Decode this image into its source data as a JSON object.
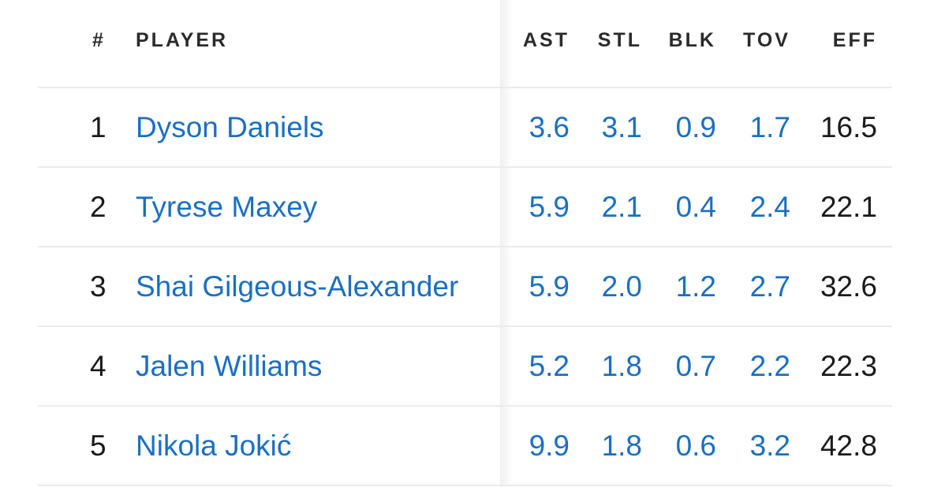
{
  "columns": {
    "rank": "#",
    "player": "PLAYER",
    "ast": "AST",
    "stl": "STL",
    "blk": "BLK",
    "tov": "TOV",
    "eff": "EFF"
  },
  "rows": [
    {
      "rank": "1",
      "player": "Dyson Daniels",
      "ast": "3.6",
      "stl": "3.1",
      "blk": "0.9",
      "tov": "1.7",
      "eff": "16.5"
    },
    {
      "rank": "2",
      "player": "Tyrese Maxey",
      "ast": "5.9",
      "stl": "2.1",
      "blk": "0.4",
      "tov": "2.4",
      "eff": "22.1"
    },
    {
      "rank": "3",
      "player": "Shai Gilgeous-Alexander",
      "ast": "5.9",
      "stl": "2.0",
      "blk": "1.2",
      "tov": "2.7",
      "eff": "32.6"
    },
    {
      "rank": "4",
      "player": "Jalen Williams",
      "ast": "5.2",
      "stl": "1.8",
      "blk": "0.7",
      "tov": "2.2",
      "eff": "22.3"
    },
    {
      "rank": "5",
      "player": "Nikola Jokić",
      "ast": "9.9",
      "stl": "1.8",
      "blk": "0.6",
      "tov": "3.2",
      "eff": "42.8"
    }
  ],
  "colors": {
    "link": "#1a6fc4",
    "text": "#1a1a1a",
    "header": "#2b2b2b",
    "divider": "#ebebeb"
  }
}
